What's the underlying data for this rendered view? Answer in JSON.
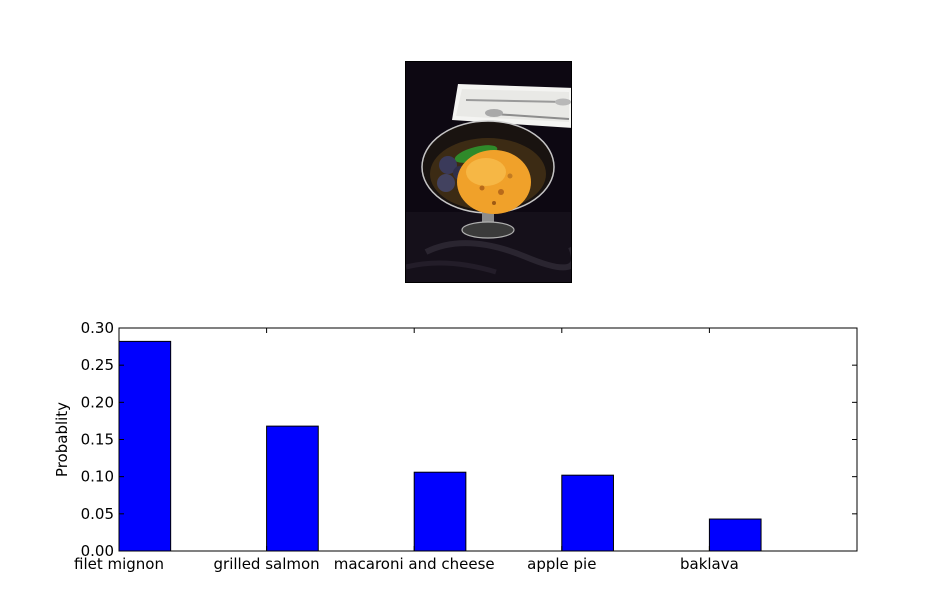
{
  "photo": {
    "icon": "ice-cream-dessert-photo"
  },
  "chart_data": {
    "type": "bar",
    "categories": [
      "filet mignon",
      "grilled salmon",
      "macaroni and cheese",
      "apple pie",
      "baklava"
    ],
    "values": [
      0.282,
      0.168,
      0.106,
      0.102,
      0.043
    ],
    "title": "",
    "xlabel": "",
    "ylabel": "Probablity",
    "ylim": [
      0,
      0.3
    ],
    "yticks": [
      0.0,
      0.05,
      0.1,
      0.15,
      0.2,
      0.25,
      0.3
    ],
    "ytick_labels": [
      "0.00",
      "0.05",
      "0.10",
      "0.15",
      "0.20",
      "0.25",
      "0.30"
    ],
    "bar_color": "#0000ff",
    "grid": false
  }
}
